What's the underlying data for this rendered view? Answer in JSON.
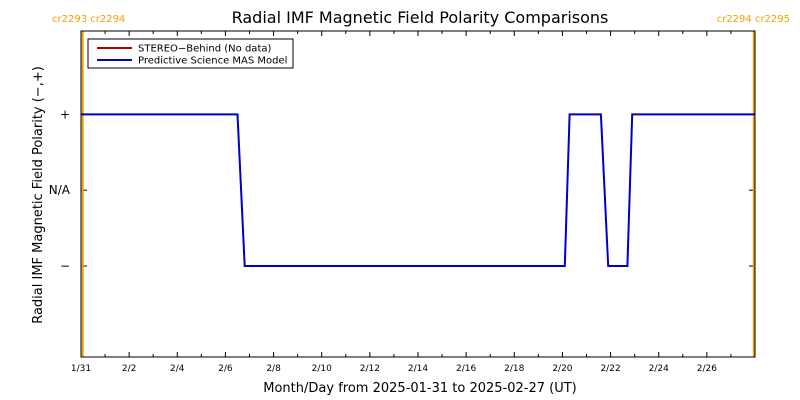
{
  "chart_data": {
    "type": "line",
    "title": "Radial IMF Magnetic Field Polarity Comparisons",
    "xlabel": "Month/Day from 2025-01-31 to 2025-02-27 (UT)",
    "ylabel": "Radial IMF Magnetic Field Polarity (−,+)",
    "x_tick_labels": [
      "1/31",
      "2/2",
      "2/4",
      "2/6",
      "2/8",
      "2/10",
      "2/12",
      "2/14",
      "2/16",
      "2/18",
      "2/20",
      "2/22",
      "2/24",
      "2/26"
    ],
    "x_tick_days": [
      0,
      2,
      4,
      6,
      8,
      10,
      12,
      14,
      16,
      18,
      20,
      22,
      24,
      26
    ],
    "xlim_days": [
      0,
      28
    ],
    "y_ticks": [
      {
        "label": "+",
        "value": 1
      },
      {
        "label": "N/A",
        "value": 0
      },
      {
        "label": "−",
        "value": -1
      }
    ],
    "ylim": [
      -2.2,
      2.1
    ],
    "legend": {
      "placement": "top-left",
      "entries": [
        {
          "label": "STEREO−Behind (No data)",
          "color": "#b40000"
        },
        {
          "label": "Predictive Science MAS Model",
          "color": "#0000c8"
        }
      ]
    },
    "series": [
      {
        "name": "Predictive Science MAS Model",
        "color": "#0000c8",
        "x_days": [
          0,
          6.5,
          6.8,
          20.1,
          20.3,
          21.6,
          21.9,
          22.7,
          22.9,
          28
        ],
        "y": [
          1,
          1,
          -1,
          -1,
          1,
          1,
          -1,
          -1,
          1,
          1
        ]
      }
    ],
    "carrington_markers": [
      {
        "labels": [
          "cr2293",
          "cr2294"
        ],
        "x_day": 0.07,
        "color": "#f5a000",
        "side": "left"
      },
      {
        "labels": [
          "cr2294",
          "cr2295"
        ],
        "x_day": 27.95,
        "color": "#f5a000",
        "side": "right"
      }
    ]
  }
}
